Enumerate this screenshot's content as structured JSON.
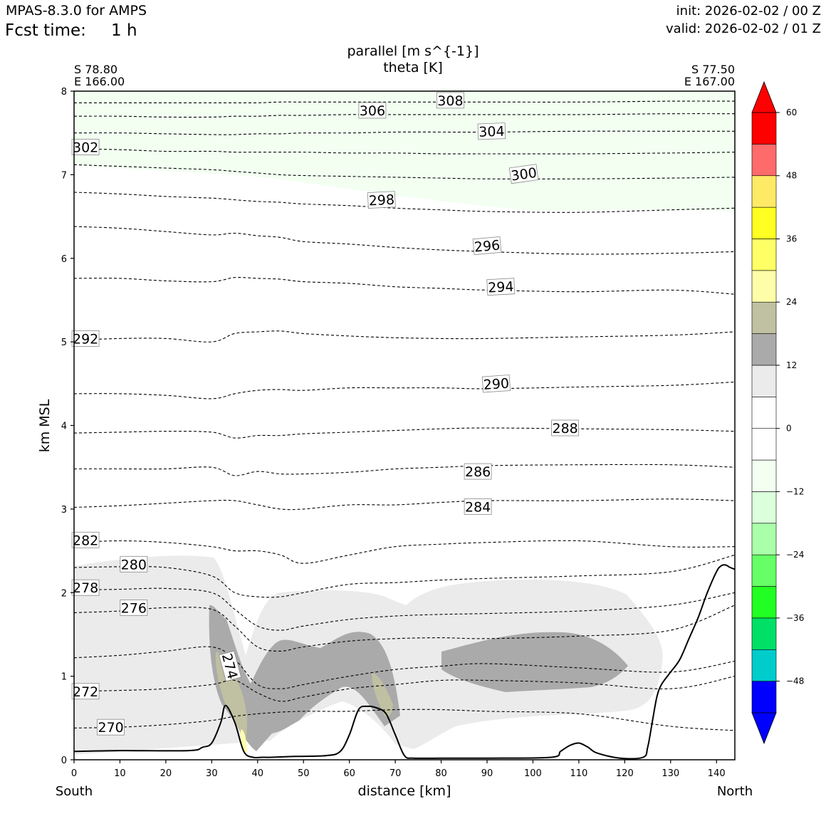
{
  "header": {
    "model": "MPAS-8.3.0 for AMPS",
    "fcst_label": "Fcst time:",
    "fcst_value": "1 h",
    "init": "init: 2026-02-02 / 00 Z",
    "valid": "valid: 2026-02-02 / 01 Z"
  },
  "colors": {
    "terrain": "#000000",
    "contour": "#000000",
    "light_gray": "#ebebeb",
    "dark_gray": "#aaaaaa",
    "khaki": "#c0c0a2",
    "pale_yellow": "#fffea8",
    "pale_green": "#f2fff1"
  },
  "chart_data": {
    "type": "cross-section",
    "title_line1": "parallel [m s^{-1}]",
    "title_line2": "theta [K]",
    "xlabel": "distance [km]",
    "ylabel": "km MSL",
    "xlim": [
      0,
      144
    ],
    "ylim": [
      0,
      8
    ],
    "xticks": [
      0,
      10,
      20,
      30,
      40,
      50,
      60,
      70,
      80,
      90,
      100,
      110,
      120,
      130,
      140
    ],
    "yticks": [
      0,
      1,
      2,
      3,
      4,
      5,
      6,
      7,
      8
    ],
    "left_coord": [
      "S 78.80",
      "E 166.00"
    ],
    "right_coord": [
      "S 77.50",
      "E 167.00"
    ],
    "left_end": "South",
    "right_end": "North",
    "terrain": {
      "x": [
        0,
        10,
        25,
        28,
        30,
        32,
        33,
        35,
        37,
        39,
        41,
        43,
        48,
        55,
        58,
        60,
        62,
        64,
        66,
        68,
        70,
        72,
        74,
        80,
        90,
        104,
        106,
        108,
        110,
        112,
        114,
        119,
        124,
        125,
        126,
        127,
        128,
        130,
        132,
        134,
        136,
        138,
        140,
        141,
        142,
        143,
        144
      ],
      "y": [
        0.1,
        0.11,
        0.11,
        0.15,
        0.2,
        0.45,
        0.65,
        0.45,
        0.1,
        0.03,
        0.03,
        0.03,
        0.04,
        0.05,
        0.1,
        0.3,
        0.6,
        0.64,
        0.62,
        0.55,
        0.3,
        0.05,
        0.02,
        0.02,
        0.02,
        0.03,
        0.1,
        0.17,
        0.2,
        0.15,
        0.08,
        0.02,
        0.03,
        0.15,
        0.45,
        0.75,
        0.9,
        1.05,
        1.2,
        1.45,
        1.7,
        2.0,
        2.25,
        2.32,
        2.33,
        2.3,
        2.28
      ]
    },
    "theta_contours": [
      {
        "level": 270,
        "y": [
          0.38,
          0.39,
          0.42,
          0.47,
          0.52,
          0.55,
          0.57,
          0.58,
          0.58,
          0.6,
          0.6,
          0.58,
          0.55,
          0.4,
          0.35
        ]
      },
      {
        "level": 272,
        "y": [
          0.82,
          0.83,
          0.85,
          0.9,
          0.95,
          0.8,
          0.7,
          0.75,
          0.85,
          0.9,
          0.95,
          0.95,
          0.92,
          0.85,
          1.0
        ]
      },
      {
        "level": 274,
        "y": [
          1.22,
          1.25,
          1.3,
          1.35,
          1.2,
          0.9,
          0.85,
          0.9,
          1.0,
          1.08,
          1.12,
          1.15,
          1.1,
          1.05,
          1.18
        ]
      },
      {
        "level": 276,
        "y": [
          1.76,
          1.78,
          1.82,
          1.8,
          1.6,
          1.35,
          1.3,
          1.35,
          1.42,
          1.45,
          1.46,
          1.45,
          1.48,
          1.55,
          1.85
        ]
      },
      {
        "level": 278,
        "y": [
          2.03,
          2.04,
          2.05,
          2.0,
          1.8,
          1.6,
          1.55,
          1.6,
          1.68,
          1.72,
          1.74,
          1.75,
          1.78,
          1.85,
          2.0
        ]
      },
      {
        "level": 280,
        "y": [
          2.3,
          2.31,
          2.3,
          2.2,
          2.0,
          1.95,
          1.95,
          2.0,
          2.1,
          2.12,
          2.15,
          2.17,
          2.2,
          2.25,
          2.45
        ]
      },
      {
        "level": 282,
        "y": [
          2.6,
          2.62,
          2.6,
          2.55,
          2.5,
          2.5,
          2.45,
          2.35,
          2.45,
          2.55,
          2.58,
          2.6,
          2.62,
          2.55,
          2.55
        ]
      },
      {
        "level": 284,
        "y": [
          3.02,
          3.04,
          3.07,
          3.1,
          3.1,
          3.05,
          3.0,
          3.0,
          3.05,
          3.05,
          3.08,
          3.1,
          3.1,
          3.12,
          3.1
        ]
      },
      {
        "level": 286,
        "y": [
          3.48,
          3.48,
          3.48,
          3.5,
          3.4,
          3.45,
          3.42,
          3.42,
          3.44,
          3.48,
          3.5,
          3.52,
          3.53,
          3.53,
          3.5
        ]
      },
      {
        "level": 288,
        "y": [
          3.91,
          3.92,
          3.93,
          3.92,
          3.85,
          3.88,
          3.88,
          3.9,
          3.92,
          3.94,
          3.96,
          3.97,
          3.96,
          3.95,
          3.93
        ]
      },
      {
        "level": 290,
        "y": [
          4.38,
          4.38,
          4.36,
          4.32,
          4.38,
          4.42,
          4.43,
          4.42,
          4.45,
          4.45,
          4.45,
          4.44,
          4.46,
          4.48,
          4.52
        ]
      },
      {
        "level": 292,
        "y": [
          5.02,
          5.04,
          5.04,
          5.0,
          5.1,
          5.12,
          5.13,
          5.1,
          5.07,
          5.05,
          5.04,
          5.04,
          5.06,
          5.08,
          5.12
        ]
      },
      {
        "level": 294,
        "y": [
          5.76,
          5.76,
          5.73,
          5.72,
          5.77,
          5.76,
          5.75,
          5.72,
          5.7,
          5.66,
          5.64,
          5.62,
          5.6,
          5.62,
          5.57
        ]
      },
      {
        "level": 296,
        "y": [
          6.38,
          6.36,
          6.32,
          6.28,
          6.3,
          6.27,
          6.25,
          6.2,
          6.17,
          6.13,
          6.1,
          6.08,
          6.05,
          6.06,
          6.08
        ]
      },
      {
        "level": 298,
        "y": [
          6.79,
          6.77,
          6.74,
          6.72,
          6.7,
          6.68,
          6.67,
          6.65,
          6.63,
          6.6,
          6.58,
          6.56,
          6.55,
          6.58,
          6.6
        ]
      },
      {
        "level": 300,
        "y": [
          7.12,
          7.1,
          7.08,
          7.06,
          7.04,
          7.02,
          7.0,
          6.99,
          6.98,
          6.97,
          6.96,
          6.95,
          6.95,
          6.96,
          6.97
        ]
      },
      {
        "level": 302,
        "y": [
          7.31,
          7.3,
          7.28,
          7.28,
          7.27,
          7.27,
          7.27,
          7.27,
          7.26,
          7.26,
          7.25,
          7.25,
          7.25,
          7.26,
          7.27
        ]
      },
      {
        "level": 304,
        "y": [
          7.5,
          7.5,
          7.49,
          7.48,
          7.48,
          7.49,
          7.49,
          7.5,
          7.5,
          7.51,
          7.51,
          7.51,
          7.52,
          7.52,
          7.52
        ]
      },
      {
        "level": 306,
        "y": [
          7.7,
          7.7,
          7.69,
          7.69,
          7.7,
          7.7,
          7.71,
          7.71,
          7.72,
          7.72,
          7.72,
          7.72,
          7.72,
          7.73,
          7.73
        ]
      },
      {
        "level": 308,
        "y": [
          7.86,
          7.86,
          7.86,
          7.86,
          7.86,
          7.86,
          7.87,
          7.87,
          7.87,
          7.87,
          7.87,
          7.87,
          7.87,
          7.88,
          7.88
        ]
      }
    ],
    "contour_x": [
      0,
      10,
      20,
      30,
      35,
      40,
      45,
      50,
      60,
      70,
      80,
      90,
      110,
      130,
      144
    ],
    "contour_labels": [
      {
        "text": "270",
        "x": 8,
        "y": 0.39,
        "angle": 0
      },
      {
        "text": "272",
        "x": 2.5,
        "y": 0.82,
        "angle": 0
      },
      {
        "text": "274",
        "x": 34,
        "y": 1.12,
        "angle": 75
      },
      {
        "text": "276",
        "x": 13,
        "y": 1.82,
        "angle": 0
      },
      {
        "text": "278",
        "x": 2.5,
        "y": 2.06,
        "angle": 0
      },
      {
        "text": "280",
        "x": 13,
        "y": 2.34,
        "angle": 0
      },
      {
        "text": "282",
        "x": 2.5,
        "y": 2.63,
        "angle": 0
      },
      {
        "text": "284",
        "x": 88,
        "y": 3.03,
        "angle": 0
      },
      {
        "text": "286",
        "x": 88,
        "y": 3.45,
        "angle": 0
      },
      {
        "text": "288",
        "x": 107,
        "y": 3.97,
        "angle": 0
      },
      {
        "text": "290",
        "x": 92,
        "y": 4.5,
        "angle": -4
      },
      {
        "text": "292",
        "x": 2.5,
        "y": 5.04,
        "angle": 0
      },
      {
        "text": "294",
        "x": 93,
        "y": 5.66,
        "angle": -3
      },
      {
        "text": "296",
        "x": 90,
        "y": 6.15,
        "angle": -5
      },
      {
        "text": "298",
        "x": 67,
        "y": 6.7,
        "angle": -3
      },
      {
        "text": "300",
        "x": 98,
        "y": 7.01,
        "angle": -8
      },
      {
        "text": "302",
        "x": 2.5,
        "y": 7.33,
        "angle": 0
      },
      {
        "text": "304",
        "x": 91,
        "y": 7.52,
        "angle": -2
      },
      {
        "text": "306",
        "x": 65,
        "y": 7.77,
        "angle": 0
      },
      {
        "text": "308",
        "x": 82,
        "y": 7.89,
        "angle": 0
      }
    ],
    "colorbar": {
      "levels": [
        -54,
        -48,
        -42,
        -36,
        -30,
        -24,
        -18,
        -12,
        -6,
        0,
        6,
        12,
        18,
        24,
        30,
        36,
        42,
        48,
        54,
        60
      ],
      "colors": [
        "#0000ff",
        "#00cccc",
        "#00e066",
        "#22ff22",
        "#66ff66",
        "#aaffaa",
        "#dcffdc",
        "#f2fff1",
        "#ffffff",
        "#ffffff",
        "#ebebeb",
        "#aaaaaa",
        "#c0c0a2",
        "#fffea8",
        "#ffff66",
        "#ffff22",
        "#ffea66",
        "#ff6b6b",
        "#ff0000"
      ],
      "extend_low": "#0000ff",
      "extend_high": "#ff0000",
      "ticks": [
        -48,
        -36,
        -24,
        -12,
        0,
        12,
        24,
        36,
        48,
        60
      ],
      "tick_labels": [
        "−48",
        "−36",
        "−24",
        "−12",
        "0",
        "12",
        "24",
        "36",
        "48",
        "60"
      ]
    }
  }
}
